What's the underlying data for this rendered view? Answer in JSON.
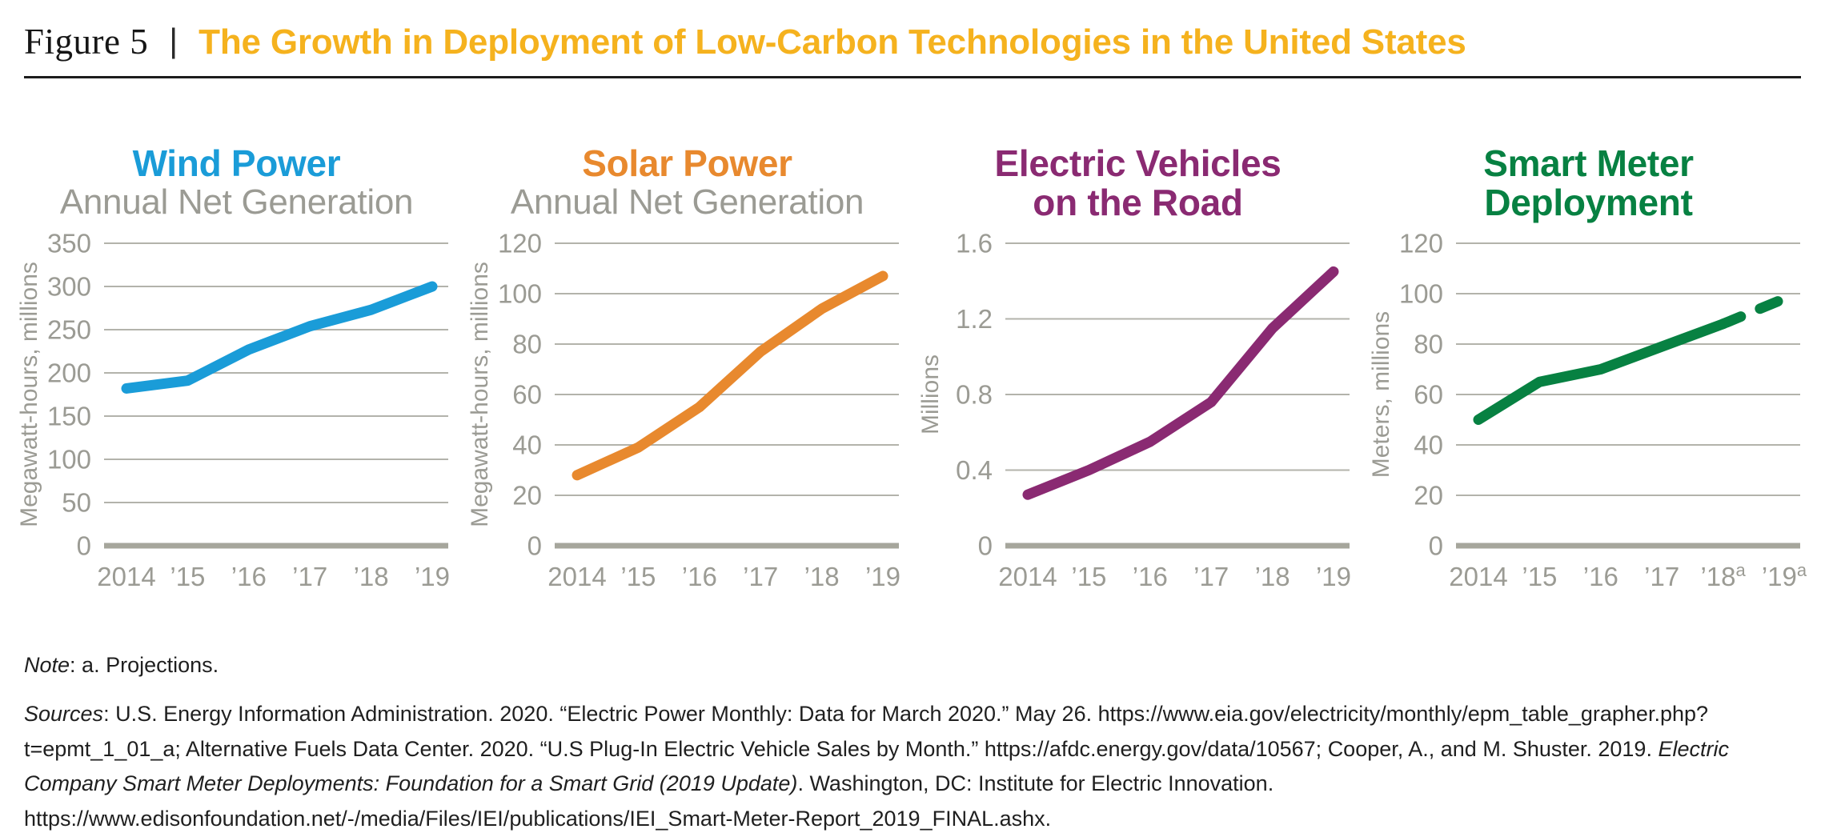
{
  "figure": {
    "label": "Figure 5",
    "separator": "|",
    "title": "The Growth in Deployment of Low-Carbon Technologies in the United States",
    "title_color": "#F5B21E"
  },
  "colors": {
    "grid": "#b3b3ab",
    "baseline": "#a6a69c",
    "axis_text": "#9b9b94",
    "rule": "#1c1c1c"
  },
  "note": {
    "label": "Note",
    "rest": ": a. Projections."
  },
  "sources": {
    "segments": [
      {
        "text": "Sources",
        "italic": true
      },
      {
        "text": ": U.S. Energy Information Administration. 2020. “Electric Power Monthly: Data for March 2020.” May 26. https://www.eia.gov/electricity/monthly/epm_table_grapher.php?t=epmt_1_01_a; Alternative Fuels Data Center. 2020. “U.S Plug-In Electric Vehicle Sales by Month.” https://afdc.energy.gov/data/10567; Cooper, A., and M. Shuster. 2019. ",
        "italic": false
      },
      {
        "text": "Electric Company Smart Meter Deployments: Foundation for a Smart Grid (2019 Update)",
        "italic": true
      },
      {
        "text": ". Washington, DC: Institute for Electric Innovation. https://www.edisonfoundation.net/-/media/Files/IEI/publications/IEI_Smart-Meter-Report_2019_FINAL.ashx.",
        "italic": false
      }
    ]
  },
  "chart_data": [
    {
      "type": "line",
      "title": "Wind Power",
      "subtitle": "Annual Net Generation",
      "color": "#1a9cd8",
      "ylabel": "Megawatt-hours, millions",
      "ylim": [
        0,
        350
      ],
      "yticks": [
        0,
        50,
        100,
        150,
        200,
        250,
        300,
        350
      ],
      "categories": [
        "2014",
        "’15",
        "’16",
        "’17",
        "’18",
        "’19"
      ],
      "values": [
        182,
        191,
        227,
        254,
        273,
        300
      ],
      "dashed_from_index": null,
      "grid": true,
      "legend": "none"
    },
    {
      "type": "line",
      "title": "Solar Power",
      "subtitle": "Annual Net Generation",
      "color": "#e8892e",
      "ylabel": "Megawatt-hours, millions",
      "ylim": [
        0,
        120
      ],
      "yticks": [
        0,
        20,
        40,
        60,
        80,
        100,
        120
      ],
      "categories": [
        "2014",
        "’15",
        "’16",
        "’17",
        "’18",
        "’19"
      ],
      "values": [
        28,
        39,
        55,
        77,
        94,
        107
      ],
      "dashed_from_index": null,
      "grid": true,
      "legend": "none"
    },
    {
      "type": "line",
      "title": "Electric Vehicles\non the Road",
      "subtitle": "",
      "color": "#8a2a72",
      "ylabel": "Millions",
      "ylim": [
        0,
        1.6
      ],
      "yticks": [
        0,
        0.4,
        0.8,
        1.2,
        1.6
      ],
      "categories": [
        "2014",
        "’15",
        "’16",
        "’17",
        "’18",
        "’19"
      ],
      "values": [
        0.27,
        0.4,
        0.55,
        0.76,
        1.15,
        1.45
      ],
      "dashed_from_index": null,
      "grid": true,
      "legend": "none"
    },
    {
      "type": "line",
      "title": "Smart Meter\nDeployment",
      "subtitle": "",
      "color": "#078142",
      "ylabel": "Meters, millions",
      "ylim": [
        0,
        120
      ],
      "yticks": [
        0,
        20,
        40,
        60,
        80,
        100,
        120
      ],
      "categories": [
        "2014",
        "’15",
        "’16",
        "’17",
        {
          "text": "’18",
          "sup": "a"
        },
        {
          "text": "’19",
          "sup": "a"
        }
      ],
      "values": [
        50,
        65,
        70,
        79,
        88,
        98
      ],
      "dashed_from_index": 4,
      "grid": true,
      "legend": "none"
    }
  ]
}
